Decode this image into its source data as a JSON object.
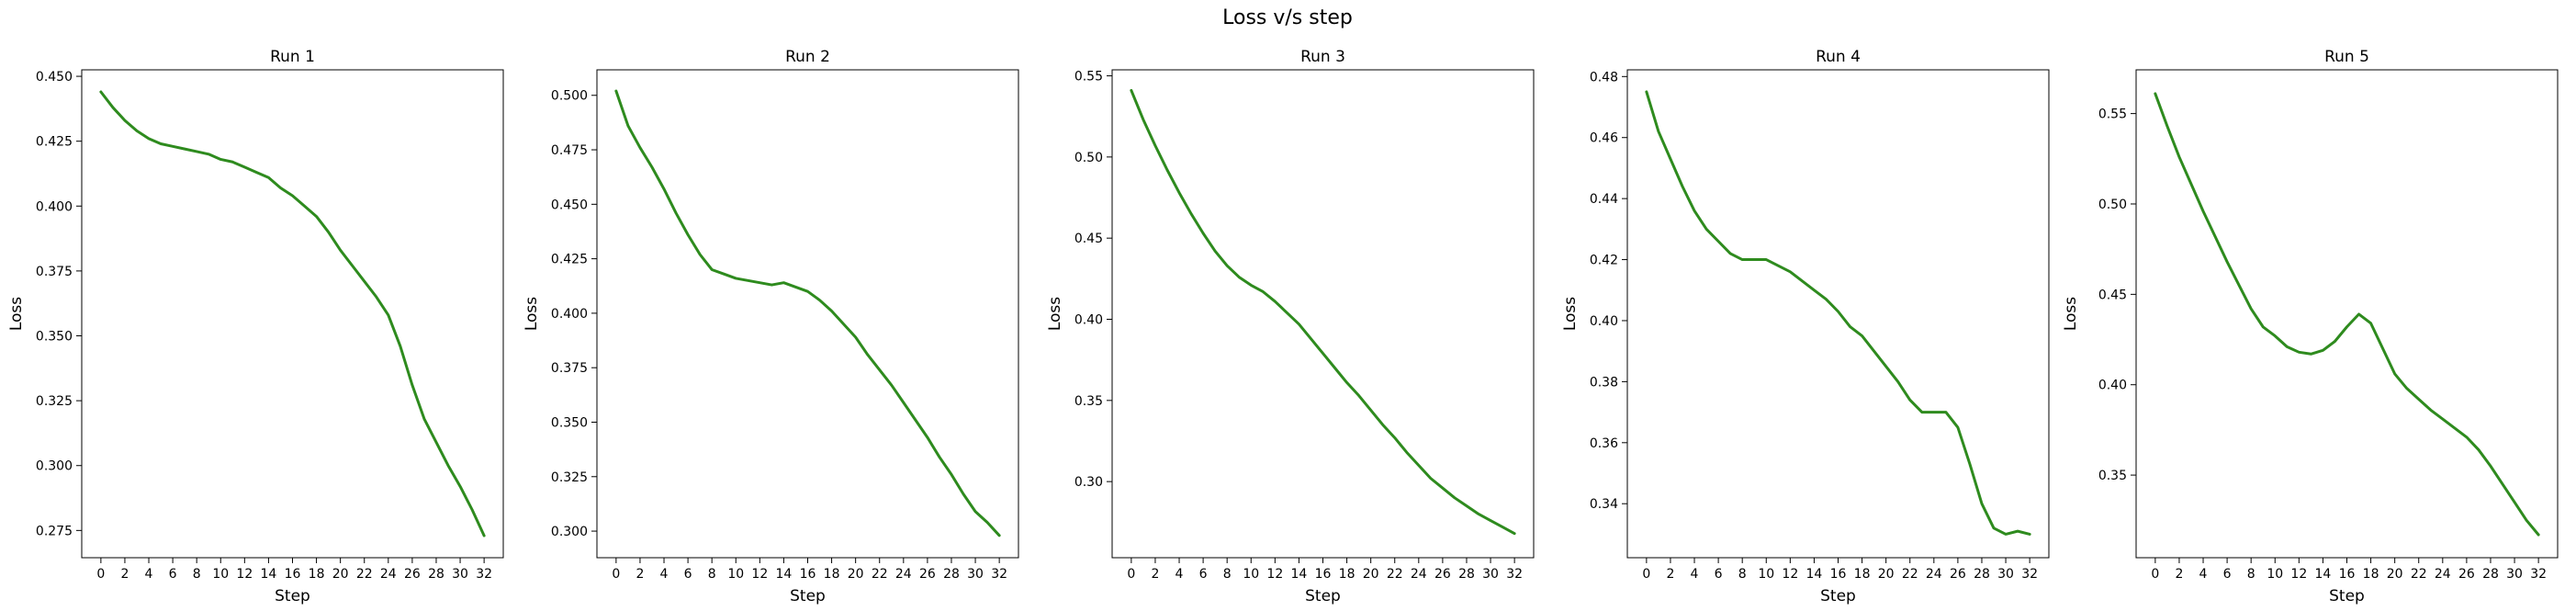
{
  "figure": {
    "title": "Loss v/s step"
  },
  "colors": {
    "line": "#2e8b1e",
    "axes": "#000000",
    "background": "#ffffff"
  },
  "chart_data": [
    {
      "type": "line",
      "title": "Run 1",
      "xlabel": "Step",
      "ylabel": "Loss",
      "grid": false,
      "xlim": [
        -1.6,
        33.6
      ],
      "ylim": [
        0.2645,
        0.4525
      ],
      "xticks": [
        0,
        2,
        4,
        6,
        8,
        10,
        12,
        14,
        16,
        18,
        20,
        22,
        24,
        26,
        28,
        30,
        32
      ],
      "yticks": [
        0.275,
        0.3,
        0.325,
        0.35,
        0.375,
        0.4,
        0.425,
        0.45
      ],
      "ytick_labels": [
        "0.275",
        "0.300",
        "0.325",
        "0.350",
        "0.375",
        "0.400",
        "0.425",
        "0.450"
      ],
      "x": [
        0,
        1,
        2,
        3,
        4,
        5,
        6,
        7,
        8,
        9,
        10,
        11,
        12,
        13,
        14,
        15,
        16,
        17,
        18,
        19,
        20,
        21,
        22,
        23,
        24,
        25,
        26,
        27,
        28,
        29,
        30,
        31,
        32
      ],
      "values": [
        0.444,
        0.438,
        0.433,
        0.429,
        0.426,
        0.424,
        0.423,
        0.422,
        0.421,
        0.42,
        0.418,
        0.417,
        0.415,
        0.413,
        0.411,
        0.407,
        0.404,
        0.4,
        0.396,
        0.39,
        0.383,
        0.377,
        0.371,
        0.365,
        0.358,
        0.346,
        0.331,
        0.318,
        0.309,
        0.3,
        0.292,
        0.283,
        0.273
      ]
    },
    {
      "type": "line",
      "title": "Run 2",
      "xlabel": "Step",
      "ylabel": "Loss",
      "grid": false,
      "xlim": [
        -1.6,
        33.6
      ],
      "ylim": [
        0.2878,
        0.5117
      ],
      "xticks": [
        0,
        2,
        4,
        6,
        8,
        10,
        12,
        14,
        16,
        18,
        20,
        22,
        24,
        26,
        28,
        30,
        32
      ],
      "yticks": [
        0.3,
        0.325,
        0.35,
        0.375,
        0.4,
        0.425,
        0.45,
        0.475,
        0.5
      ],
      "ytick_labels": [
        "0.300",
        "0.325",
        "0.350",
        "0.375",
        "0.400",
        "0.425",
        "0.450",
        "0.475",
        "0.500"
      ],
      "x": [
        0,
        1,
        2,
        3,
        4,
        5,
        6,
        7,
        8,
        9,
        10,
        11,
        12,
        13,
        14,
        15,
        16,
        17,
        18,
        19,
        20,
        21,
        22,
        23,
        24,
        25,
        26,
        27,
        28,
        29,
        30,
        31,
        32
      ],
      "values": [
        0.502,
        0.486,
        0.476,
        0.467,
        0.457,
        0.446,
        0.436,
        0.427,
        0.42,
        0.418,
        0.416,
        0.415,
        0.414,
        0.413,
        0.414,
        0.412,
        0.41,
        0.406,
        0.401,
        0.395,
        0.389,
        0.381,
        0.374,
        0.367,
        0.359,
        0.351,
        0.343,
        0.334,
        0.326,
        0.317,
        0.309,
        0.304,
        0.298
      ]
    },
    {
      "type": "line",
      "title": "Run 3",
      "xlabel": "Step",
      "ylabel": "Loss",
      "grid": false,
      "xlim": [
        -1.6,
        33.6
      ],
      "ylim": [
        0.2531,
        0.5537
      ],
      "xticks": [
        0,
        2,
        4,
        6,
        8,
        10,
        12,
        14,
        16,
        18,
        20,
        22,
        24,
        26,
        28,
        30,
        32
      ],
      "yticks": [
        0.3,
        0.35,
        0.4,
        0.45,
        0.5,
        0.55
      ],
      "ytick_labels": [
        "0.30",
        "0.35",
        "0.40",
        "0.45",
        "0.50",
        "0.55"
      ],
      "x": [
        0,
        1,
        2,
        3,
        4,
        5,
        6,
        7,
        8,
        9,
        10,
        11,
        12,
        13,
        14,
        15,
        16,
        17,
        18,
        19,
        20,
        21,
        22,
        23,
        24,
        25,
        26,
        27,
        28,
        29,
        30,
        31,
        32
      ],
      "values": [
        0.541,
        0.523,
        0.507,
        0.492,
        0.478,
        0.465,
        0.453,
        0.442,
        0.433,
        0.426,
        0.421,
        0.417,
        0.411,
        0.404,
        0.397,
        0.388,
        0.379,
        0.37,
        0.361,
        0.353,
        0.344,
        0.335,
        0.327,
        0.318,
        0.31,
        0.302,
        0.296,
        0.29,
        0.285,
        0.28,
        0.276,
        0.272,
        0.268
      ]
    },
    {
      "type": "line",
      "title": "Run 4",
      "xlabel": "Step",
      "ylabel": "Loss",
      "grid": false,
      "xlim": [
        -1.6,
        33.6
      ],
      "ylim": [
        0.3223,
        0.4822
      ],
      "xticks": [
        0,
        2,
        4,
        6,
        8,
        10,
        12,
        14,
        16,
        18,
        20,
        22,
        24,
        26,
        28,
        30,
        32
      ],
      "yticks": [
        0.34,
        0.36,
        0.38,
        0.4,
        0.42,
        0.44,
        0.46,
        0.48
      ],
      "ytick_labels": [
        "0.34",
        "0.36",
        "0.38",
        "0.40",
        "0.42",
        "0.44",
        "0.46",
        "0.48"
      ],
      "x": [
        0,
        1,
        2,
        3,
        4,
        5,
        6,
        7,
        8,
        9,
        10,
        11,
        12,
        13,
        14,
        15,
        16,
        17,
        18,
        19,
        20,
        21,
        22,
        23,
        24,
        25,
        26,
        27,
        28,
        29,
        30,
        31,
        32
      ],
      "values": [
        0.475,
        0.462,
        0.453,
        0.444,
        0.436,
        0.43,
        0.426,
        0.422,
        0.42,
        0.42,
        0.42,
        0.418,
        0.416,
        0.413,
        0.41,
        0.407,
        0.403,
        0.398,
        0.395,
        0.39,
        0.385,
        0.38,
        0.374,
        0.37,
        0.37,
        0.37,
        0.365,
        0.353,
        0.34,
        0.332,
        0.33,
        0.331,
        0.33
      ]
    },
    {
      "type": "line",
      "title": "Run 5",
      "xlabel": "Step",
      "ylabel": "Loss",
      "grid": false,
      "xlim": [
        -1.6,
        33.6
      ],
      "ylim": [
        0.3043,
        0.5742
      ],
      "xticks": [
        0,
        2,
        4,
        6,
        8,
        10,
        12,
        14,
        16,
        18,
        20,
        22,
        24,
        26,
        28,
        30,
        32
      ],
      "yticks": [
        0.35,
        0.4,
        0.45,
        0.5,
        0.55
      ],
      "ytick_labels": [
        "0.35",
        "0.40",
        "0.45",
        "0.50",
        "0.55"
      ],
      "x": [
        0,
        1,
        2,
        3,
        4,
        5,
        6,
        7,
        8,
        9,
        10,
        11,
        12,
        13,
        14,
        15,
        16,
        17,
        18,
        19,
        20,
        21,
        22,
        23,
        24,
        25,
        26,
        27,
        28,
        29,
        30,
        31,
        32
      ],
      "values": [
        0.561,
        0.543,
        0.526,
        0.511,
        0.496,
        0.482,
        0.468,
        0.455,
        0.442,
        0.432,
        0.427,
        0.421,
        0.418,
        0.417,
        0.419,
        0.424,
        0.432,
        0.439,
        0.434,
        0.42,
        0.406,
        0.398,
        0.392,
        0.386,
        0.381,
        0.376,
        0.371,
        0.364,
        0.355,
        0.345,
        0.335,
        0.325,
        0.317
      ]
    }
  ]
}
